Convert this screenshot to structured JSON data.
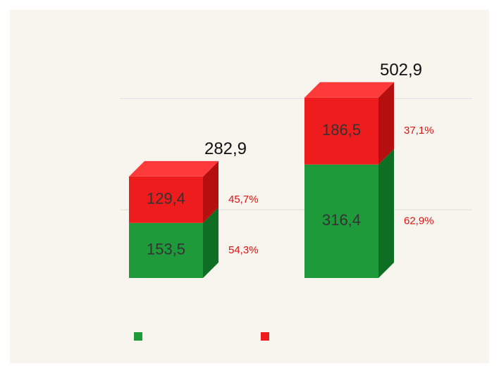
{
  "chart_data": {
    "type": "bar3d-stacked",
    "categories": [
      null,
      null
    ],
    "series": [
      {
        "color": "#1f9a3a",
        "side": "#0e6e24",
        "top": "#3fb554",
        "values": [
          153.5,
          316.4
        ],
        "value_labels": [
          "153,5",
          "316,4"
        ],
        "percents": [
          54.3,
          62.9
        ],
        "percent_labels": [
          "54,3%",
          "62,9%"
        ]
      },
      {
        "color": "#ee1c1c",
        "side": "#b50f0f",
        "top": "#ff3a3a",
        "values": [
          129.4,
          186.5
        ],
        "value_labels": [
          "129,4",
          "186,5"
        ],
        "percents": [
          45.7,
          37.1
        ],
        "percent_labels": [
          "45,7%",
          "37,1%"
        ]
      }
    ],
    "totals": [
      282.9,
      502.9
    ],
    "total_labels": [
      "282,9",
      "502,9"
    ],
    "ylim": [
      0,
      520
    ]
  }
}
